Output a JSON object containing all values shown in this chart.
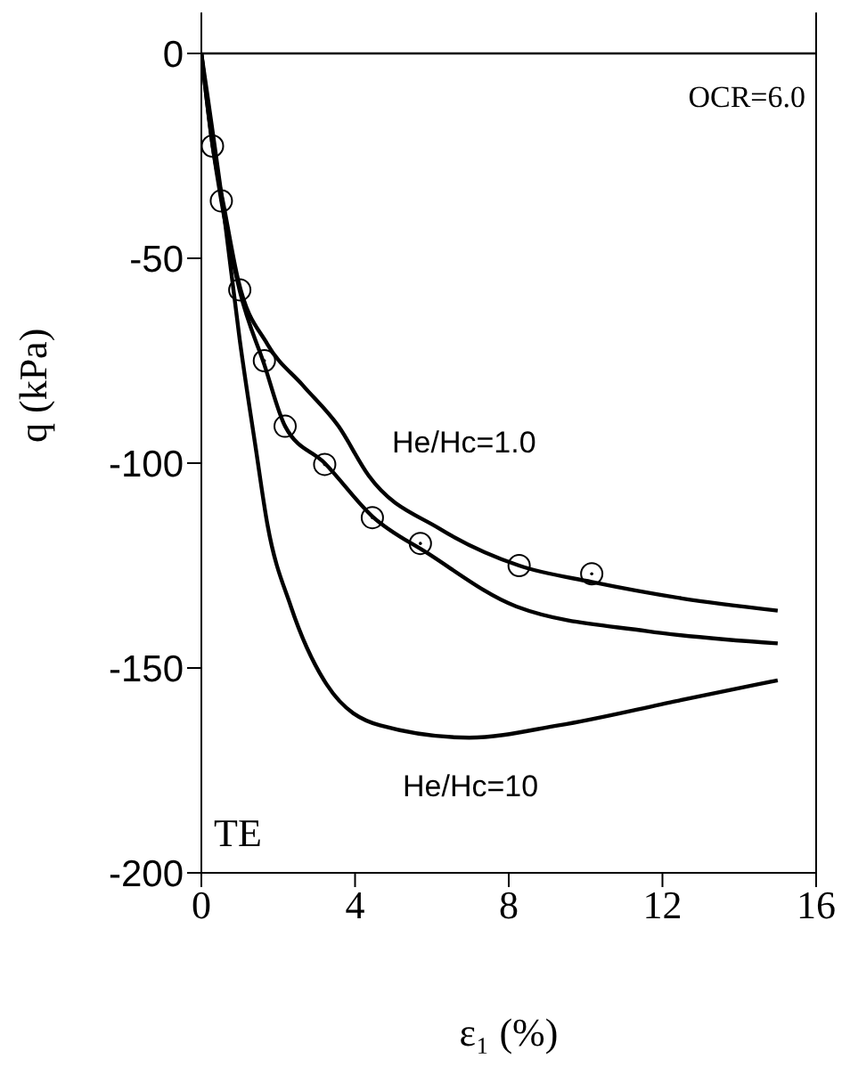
{
  "chart_data": {
    "type": "line",
    "xlabel": "ε₁ (%)",
    "ylabel": "q (kPa)",
    "xlim": [
      0,
      16
    ],
    "xticks": [
      0,
      4,
      8,
      12,
      16
    ],
    "ylim": [
      -200,
      10
    ],
    "yticks": [
      0,
      -50,
      -100,
      -150,
      -200
    ],
    "line_style": "solid",
    "series": [
      {
        "color": "#000000",
        "x": [
          0,
          0.3,
          0.6,
          0.95,
          1.72,
          2.64,
          3.57,
          4.35,
          6.2,
          8.27,
          10.16,
          12.5,
          15.0
        ],
        "values": [
          0,
          -23,
          -38,
          -55,
          -71,
          -81,
          -91,
          -103,
          -116,
          -125,
          -129,
          -133,
          -136
        ]
      },
      {
        "color": "#000000",
        "x": [
          0,
          0.3,
          0.52,
          1.0,
          1.64,
          2.18,
          3.21,
          4.45,
          5.89,
          8.2,
          11.6,
          15.0
        ],
        "values": [
          0,
          -23,
          -36,
          -58,
          -76,
          -91,
          -100,
          -113,
          -122,
          -135,
          -141,
          -144
        ]
      },
      {
        "color": "#000000",
        "x": [
          0,
          0.6,
          1.0,
          1.41,
          1.72,
          2.33,
          3.26,
          4.65,
          6.97,
          9.3,
          12.4,
          15.0
        ],
        "values": [
          0,
          -40,
          -70,
          -96,
          -115,
          -135,
          -154,
          -164,
          -167,
          -164,
          -158,
          -153
        ]
      },
      {
        "type": "scatter",
        "color": "#000000",
        "marker": "circle",
        "x": [
          0.29,
          0.52,
          1.0,
          1.64,
          2.18,
          3.21,
          4.45,
          5.7,
          8.27,
          10.16
        ],
        "values": [
          -22.6,
          -36,
          -57.7,
          -75,
          -91,
          -100.3,
          -113.3,
          -119.6,
          -125,
          -127
        ]
      }
    ],
    "ref_lines": [
      {
        "axis": "y",
        "value": 0,
        "color": "#000000"
      }
    ],
    "annotations": [
      "OCR=6.0",
      "TE",
      "He/Hc=1.0",
      "He/Hc=10"
    ]
  }
}
